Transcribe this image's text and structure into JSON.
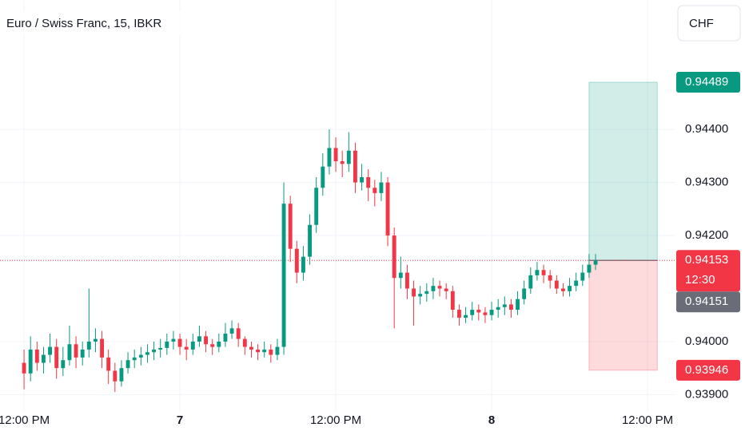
{
  "chart_data": {
    "type": "candlestick",
    "title": "Euro / Swiss Franc, 15, IBKR",
    "currency": "CHF",
    "x": [
      -12,
      -11.5,
      -11,
      -10.5,
      -10,
      -9.5,
      -9,
      -8.5,
      -8,
      -7.5,
      -7,
      -6.5,
      -6,
      -5.5,
      -5,
      -4.5,
      -4,
      -3.5,
      -3,
      -2.5,
      -2,
      -1.5,
      -1,
      -0.5,
      0,
      0.5,
      1,
      1.5,
      2,
      2.5,
      3,
      3.5,
      4,
      4.5,
      5,
      5.5,
      6,
      6.5,
      7,
      7.5,
      8,
      8.5,
      9,
      9.5,
      10,
      10.5,
      11,
      11.5,
      12,
      12.5,
      13,
      13.5,
      14,
      14.5,
      15,
      15.5,
      16,
      16.5,
      17,
      17.5,
      18,
      18.5,
      19,
      19.5,
      20,
      20.5,
      21,
      21.5,
      22,
      22.5,
      23,
      23.5,
      24,
      24.5,
      25,
      25.5,
      26,
      26.5,
      27,
      27.5,
      28,
      28.5,
      29,
      29.5,
      30,
      30.5,
      31,
      31.5,
      32
    ],
    "open": [
      0.9396,
      0.9394,
      0.93985,
      0.9396,
      0.93975,
      0.9399,
      0.9395,
      0.93965,
      0.93995,
      0.9397,
      0.93985,
      0.94,
      0.94005,
      0.9397,
      0.93945,
      0.93925,
      0.9395,
      0.93965,
      0.9397,
      0.93975,
      0.9398,
      0.93985,
      0.93988,
      0.94,
      0.94005,
      0.9399,
      0.93985,
      0.94,
      0.9401,
      0.93995,
      0.9399,
      0.94,
      0.94015,
      0.94025,
      0.94005,
      0.9399,
      0.93985,
      0.9398,
      0.93985,
      0.93975,
      0.9399,
      0.9426,
      0.94175,
      0.9413,
      0.9416,
      0.9422,
      0.9429,
      0.9433,
      0.94365,
      0.9434,
      0.94335,
      0.9436,
      0.943,
      0.9431,
      0.9429,
      0.9428,
      0.943,
      0.942,
      0.9412,
      0.9413,
      0.941,
      0.94085,
      0.9409,
      0.94095,
      0.94105,
      0.941,
      0.94095,
      0.9406,
      0.94045,
      0.9405,
      0.9406,
      0.94055,
      0.9405,
      0.9406,
      0.94065,
      0.9407,
      0.9406,
      0.9408,
      0.941,
      0.94125,
      0.94135,
      0.94125,
      0.94115,
      0.941,
      0.94095,
      0.94105,
      0.94115,
      0.9413,
      0.94145
    ],
    "high": [
      0.93985,
      0.9401,
      0.94,
      0.9399,
      0.94015,
      0.94005,
      0.9399,
      0.9403,
      0.9401,
      0.94,
      0.941,
      0.94025,
      0.9402,
      0.93985,
      0.9396,
      0.93965,
      0.9398,
      0.93985,
      0.9399,
      0.93995,
      0.94,
      0.94005,
      0.94015,
      0.9402,
      0.94015,
      0.94005,
      0.94015,
      0.9403,
      0.9402,
      0.94005,
      0.94015,
      0.94035,
      0.9404,
      0.94035,
      0.9401,
      0.94,
      0.93995,
      0.94,
      0.93995,
      0.94005,
      0.943,
      0.94275,
      0.9419,
      0.9418,
      0.9424,
      0.9431,
      0.94355,
      0.944,
      0.94385,
      0.9436,
      0.94395,
      0.94375,
      0.94335,
      0.94325,
      0.94305,
      0.9432,
      0.9431,
      0.94215,
      0.9416,
      0.94145,
      0.94115,
      0.94105,
      0.9411,
      0.9412,
      0.94115,
      0.9411,
      0.94105,
      0.9407,
      0.94065,
      0.94075,
      0.9407,
      0.94065,
      0.94075,
      0.9408,
      0.94085,
      0.9408,
      0.94095,
      0.94115,
      0.9414,
      0.9415,
      0.94145,
      0.94135,
      0.94125,
      0.9411,
      0.9412,
      0.9413,
      0.94145,
      0.94165,
      0.94165
    ],
    "low": [
      0.9391,
      0.93925,
      0.93945,
      0.9394,
      0.9396,
      0.9393,
      0.93935,
      0.93955,
      0.9395,
      0.93955,
      0.9397,
      0.9398,
      0.9395,
      0.9392,
      0.93905,
      0.93915,
      0.9394,
      0.9395,
      0.93955,
      0.9396,
      0.93965,
      0.9397,
      0.93975,
      0.93985,
      0.93975,
      0.93965,
      0.93975,
      0.9399,
      0.9398,
      0.93975,
      0.9398,
      0.9399,
      0.94005,
      0.9399,
      0.93975,
      0.9397,
      0.93965,
      0.9397,
      0.9396,
      0.93965,
      0.93975,
      0.9415,
      0.9411,
      0.94115,
      0.94145,
      0.94205,
      0.94275,
      0.94315,
      0.9432,
      0.9431,
      0.9432,
      0.9428,
      0.94285,
      0.94265,
      0.94255,
      0.94265,
      0.9418,
      0.94025,
      0.941,
      0.9408,
      0.9403,
      0.9407,
      0.94075,
      0.9408,
      0.94085,
      0.9408,
      0.94045,
      0.9403,
      0.94035,
      0.9404,
      0.9404,
      0.94035,
      0.9404,
      0.94045,
      0.9405,
      0.94045,
      0.9405,
      0.9407,
      0.9409,
      0.94115,
      0.9411,
      0.941,
      0.9409,
      0.94085,
      0.94085,
      0.94095,
      0.94105,
      0.9412,
      0.94135
    ],
    "close": [
      0.9394,
      0.93985,
      0.9396,
      0.93975,
      0.9399,
      0.9395,
      0.93965,
      0.93995,
      0.9397,
      0.93985,
      0.94,
      0.94005,
      0.9397,
      0.93945,
      0.93925,
      0.9395,
      0.93965,
      0.9397,
      0.93975,
      0.9398,
      0.93985,
      0.93988,
      0.94,
      0.94005,
      0.9399,
      0.93985,
      0.94,
      0.9401,
      0.93995,
      0.9399,
      0.94,
      0.94015,
      0.94025,
      0.94005,
      0.9399,
      0.93985,
      0.9398,
      0.93985,
      0.93975,
      0.9399,
      0.9426,
      0.94175,
      0.9413,
      0.9416,
      0.9422,
      0.9429,
      0.9433,
      0.94365,
      0.9434,
      0.94335,
      0.9436,
      0.943,
      0.9431,
      0.9429,
      0.9428,
      0.943,
      0.942,
      0.9412,
      0.9413,
      0.941,
      0.94085,
      0.9409,
      0.94095,
      0.94105,
      0.941,
      0.94095,
      0.9406,
      0.94045,
      0.9405,
      0.9406,
      0.94055,
      0.9405,
      0.9406,
      0.94065,
      0.9407,
      0.9406,
      0.9408,
      0.941,
      0.94125,
      0.94135,
      0.94125,
      0.94115,
      0.941,
      0.94095,
      0.94105,
      0.94115,
      0.9413,
      0.94145,
      0.94153
    ],
    "up_color": "#089981",
    "down_color": "#f23645",
    "xlim": [
      -13.85,
      38.15
    ],
    "ylim": [
      0.93869,
      0.94644
    ],
    "xticks": [
      {
        "value": -12,
        "label": "12:00 PM"
      },
      {
        "value": 0,
        "label": "7"
      },
      {
        "value": 12,
        "label": "12:00 PM"
      },
      {
        "value": 24,
        "label": "8"
      },
      {
        "value": 36,
        "label": "12:00 PM"
      }
    ],
    "yticks": [
      {
        "value": 0.939,
        "label": "0.93900"
      },
      {
        "value": 0.94,
        "label": "0.94000"
      },
      {
        "value": 0.942,
        "label": "0.94200"
      },
      {
        "value": 0.943,
        "label": "0.94300"
      },
      {
        "value": 0.944,
        "label": "0.94400"
      }
    ],
    "grid": true,
    "last_price": 0.94153,
    "countdown": "12:30",
    "marker_price": 0.94151,
    "position": {
      "take_profit": 0.94489,
      "stop_loss": 0.93946,
      "entry": 0.94153,
      "x_start": 31.5,
      "x_end": 36.75
    }
  }
}
